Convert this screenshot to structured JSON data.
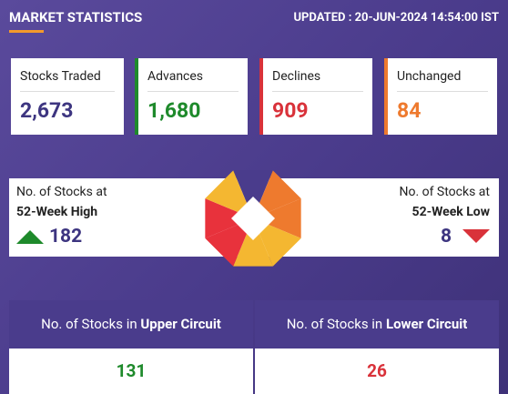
{
  "header": {
    "title": "MARKET STATISTICS",
    "updated": "UPDATED : 20-JUN-2024 14:54:00 IST"
  },
  "cards": [
    {
      "label": "Stocks Traded",
      "value": "2,673"
    },
    {
      "label": "Advances",
      "value": "1,680"
    },
    {
      "label": "Declines",
      "value": "909"
    },
    {
      "label": "Unchanged",
      "value": "84"
    }
  ],
  "week52": {
    "high": {
      "line1": "No. of Stocks at",
      "line2": "52-Week High",
      "value": "182"
    },
    "low": {
      "line1": "No. of Stocks at",
      "line2": "52-Week Low",
      "value": "8"
    }
  },
  "circuit": {
    "upper": {
      "prefix": "No. of Stocks in",
      "label": "Upper Circuit",
      "value": "131"
    },
    "lower": {
      "prefix": "No. of Stocks in",
      "label": "Lower Circuit",
      "value": "26"
    }
  }
}
